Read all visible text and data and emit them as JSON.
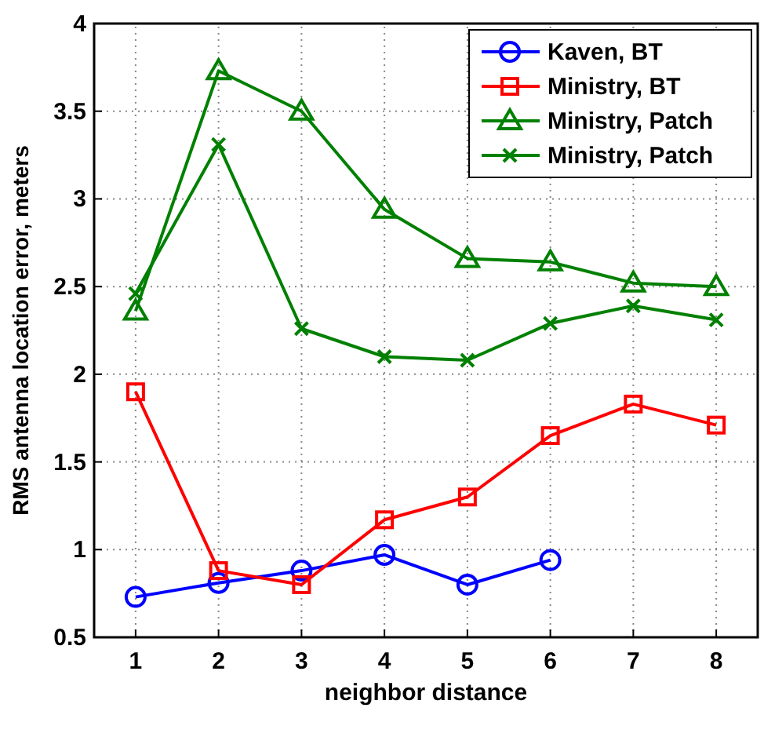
{
  "chart_data": {
    "type": "line",
    "xlabel": "neighbor distance",
    "ylabel": "RMS antenna location error, meters",
    "xlim": [
      0.5,
      8.5
    ],
    "xticks": [
      1,
      2,
      3,
      4,
      5,
      6,
      7,
      8
    ],
    "ylim": [
      0.5,
      4
    ],
    "yticks": [
      0.5,
      1,
      1.5,
      2,
      2.5,
      3,
      3.5,
      4
    ],
    "grid": true,
    "legend": "top right",
    "series": [
      {
        "name": "Kaven, BT",
        "color": "#0000ff",
        "marker": "circle",
        "x": [
          1,
          2,
          3,
          4,
          5,
          6
        ],
        "values": [
          0.73,
          0.81,
          0.88,
          0.97,
          0.8,
          0.94
        ]
      },
      {
        "name": "Ministry, BT",
        "color": "#ff0000",
        "marker": "square",
        "x": [
          1,
          2,
          3,
          4,
          5,
          6,
          7,
          8
        ],
        "values": [
          1.9,
          0.88,
          0.8,
          1.17,
          1.3,
          1.65,
          1.83,
          1.71
        ]
      },
      {
        "name": "Ministry, Patch",
        "color": "#008000",
        "marker": "triangle",
        "x": [
          1,
          2,
          3,
          4,
          5,
          6,
          7,
          8
        ],
        "values": [
          2.36,
          3.73,
          3.5,
          2.94,
          2.66,
          2.64,
          2.52,
          2.5
        ]
      },
      {
        "name": "Ministry, Patch",
        "color": "#008000",
        "marker": "cross",
        "x": [
          1,
          2,
          3,
          4,
          5,
          6,
          7,
          8
        ],
        "values": [
          2.46,
          3.31,
          2.26,
          2.1,
          2.08,
          2.29,
          2.39,
          2.31
        ]
      }
    ]
  }
}
